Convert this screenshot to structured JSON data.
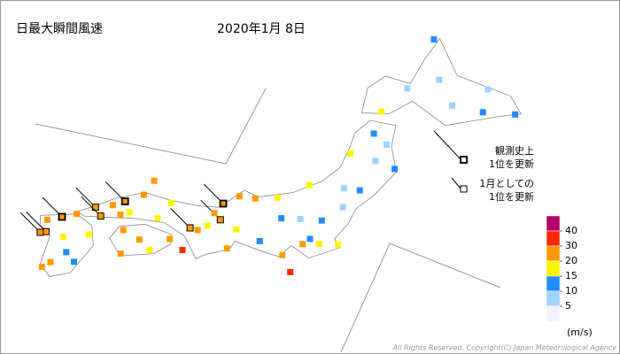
{
  "header": {
    "title": "日最大瞬間風速",
    "date": "2020年1月 8日"
  },
  "record_legend": [
    {
      "lines": [
        "観測史上",
        "1位を更新"
      ],
      "record_all_time": true
    },
    {
      "lines": [
        "1月としての",
        "1位を更新"
      ],
      "record_all_time": false
    }
  ],
  "scale": {
    "unit": "(m/s)",
    "below_color": "#f2f2ff",
    "steps": [
      {
        "value": 5,
        "color": "#a0d2ff"
      },
      {
        "value": 10,
        "color": "#218cff"
      },
      {
        "value": 15,
        "color": "#fff500"
      },
      {
        "value": 20,
        "color": "#ff9900"
      },
      {
        "value": 30,
        "color": "#ff2800"
      },
      {
        "value": 40,
        "color": "#b40068"
      }
    ]
  },
  "stations": [
    {
      "lon": 130.4,
      "lat": 33.6,
      "speed": 27,
      "record_all_time": true
    },
    {
      "lon": 129.9,
      "lat": 33.3,
      "speed": 22
    },
    {
      "lon": 130.0,
      "lat": 32.8,
      "speed": 25,
      "record_all_time": false
    },
    {
      "lon": 130.7,
      "lat": 32.8,
      "speed": 18
    },
    {
      "lon": 131.6,
      "lat": 33.2,
      "speed": 16
    },
    {
      "lon": 131.4,
      "lat": 31.9,
      "speed": 12
    },
    {
      "lon": 130.55,
      "lat": 31.6,
      "speed": 20
    },
    {
      "lon": 130.3,
      "lat": 31.3,
      "speed": 28
    },
    {
      "lon": 129.8,
      "lat": 32.7,
      "speed": 24,
      "record_all_time": false
    },
    {
      "lon": 130.9,
      "lat": 33.9,
      "speed": 23
    },
    {
      "lon": 131.0,
      "lat": 32.2,
      "speed": 14
    },
    {
      "lon": 131.5,
      "lat": 34.4,
      "speed": 26,
      "record_all_time": false
    },
    {
      "lon": 132.1,
      "lat": 34.7,
      "speed": 24
    },
    {
      "lon": 132.5,
      "lat": 35.0,
      "speed": 22,
      "record_all_time": true
    },
    {
      "lon": 133.1,
      "lat": 35.5,
      "speed": 20
    },
    {
      "lon": 134.2,
      "lat": 35.5,
      "speed": 18
    },
    {
      "lon": 132.5,
      "lat": 34.4,
      "speed": 21
    },
    {
      "lon": 133.9,
      "lat": 34.7,
      "speed": 17
    },
    {
      "lon": 131.8,
      "lat": 34.1,
      "speed": 29,
      "record_all_time": false
    },
    {
      "lon": 132.8,
      "lat": 34.6,
      "speed": 19
    },
    {
      "lon": 132.8,
      "lat": 33.8,
      "speed": 23
    },
    {
      "lon": 133.5,
      "lat": 33.6,
      "speed": 21
    },
    {
      "lon": 134.6,
      "lat": 34.0,
      "speed": 20
    },
    {
      "lon": 134.0,
      "lat": 33.3,
      "speed": 16
    },
    {
      "lon": 133.0,
      "lat": 32.8,
      "speed": 22
    },
    {
      "lon": 135.5,
      "lat": 34.7,
      "speed": 20
    },
    {
      "lon": 135.2,
      "lat": 34.7,
      "speed": 23,
      "record_all_time": false
    },
    {
      "lon": 135.8,
      "lat": 35.0,
      "speed": 18
    },
    {
      "lon": 136.2,
      "lat": 35.4,
      "speed": 24,
      "record_all_time": false
    },
    {
      "lon": 135.2,
      "lat": 33.7,
      "speed": 30
    },
    {
      "lon": 136.8,
      "lat": 34.3,
      "speed": 21
    },
    {
      "lon": 135.9,
      "lat": 35.6,
      "speed": 22
    },
    {
      "lon": 136.6,
      "lat": 36.6,
      "speed": 25
    },
    {
      "lon": 137.2,
      "lat": 36.7,
      "speed": 21
    },
    {
      "lon": 138.0,
      "lat": 37.0,
      "speed": 17
    },
    {
      "lon": 139.0,
      "lat": 37.9,
      "speed": 18
    },
    {
      "lon": 136.1,
      "lat": 36.1,
      "speed": 26,
      "record_all_time": true
    },
    {
      "lon": 136.9,
      "lat": 35.2,
      "speed": 19
    },
    {
      "lon": 137.9,
      "lat": 35.0,
      "speed": 14
    },
    {
      "lon": 138.4,
      "lat": 36.2,
      "speed": 10
    },
    {
      "lon": 139.7,
      "lat": 35.7,
      "speed": 13
    },
    {
      "lon": 140.1,
      "lat": 35.6,
      "speed": 16
    },
    {
      "lon": 139.5,
      "lat": 35.4,
      "speed": 23
    },
    {
      "lon": 140.8,
      "lat": 35.8,
      "speed": 18
    },
    {
      "lon": 139.1,
      "lat": 36.4,
      "speed": 8
    },
    {
      "lon": 139.9,
      "lat": 36.6,
      "speed": 12
    },
    {
      "lon": 138.9,
      "lat": 34.7,
      "speed": 27
    },
    {
      "lon": 140.9,
      "lat": 38.3,
      "speed": 11
    },
    {
      "lon": 140.1,
      "lat": 39.7,
      "speed": 17
    },
    {
      "lon": 141.1,
      "lat": 39.7,
      "speed": 8
    },
    {
      "lon": 141.9,
      "lat": 39.6,
      "speed": 12
    },
    {
      "lon": 140.7,
      "lat": 40.8,
      "speed": 13
    },
    {
      "lon": 140.3,
      "lat": 38.2,
      "speed": 7
    },
    {
      "lon": 140.5,
      "lat": 37.4,
      "speed": 9
    },
    {
      "lon": 141.3,
      "lat": 40.5,
      "speed": 6
    },
    {
      "lon": 141.35,
      "lat": 43.06,
      "speed": 9
    },
    {
      "lon": 140.7,
      "lat": 41.8,
      "speed": 15
    },
    {
      "lon": 142.4,
      "lat": 43.8,
      "speed": 7
    },
    {
      "lon": 144.4,
      "lat": 43.0,
      "speed": 12
    },
    {
      "lon": 143.2,
      "lat": 42.9,
      "speed": 6
    },
    {
      "lon": 141.7,
      "lat": 45.4,
      "speed": 11
    },
    {
      "lon": 144.3,
      "lat": 44.0,
      "speed": 8
    },
    {
      "lon": 145.6,
      "lat": 43.3,
      "speed": 10
    },
    {
      "lon": 139.4,
      "lat": 34.1,
      "speed": 32
    },
    {
      "lon": 133.3,
      "lat": 36.2,
      "speed": 21
    }
  ],
  "footer": {
    "copyright": "All Rights Reserved, Copyright(C) Japan Meteorological Agency"
  }
}
